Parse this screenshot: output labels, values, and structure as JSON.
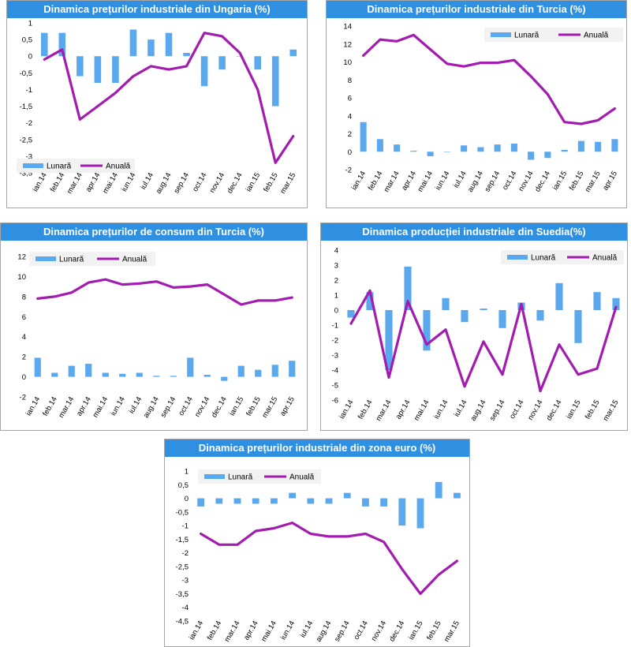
{
  "colors": {
    "bar": "#5aa8ee",
    "line": "#a21caf",
    "title_bg": "#2f8fe0"
  },
  "legend": {
    "monthly": "Lunară",
    "annual": "Anuală"
  },
  "chart_data": [
    {
      "type": "bar+line",
      "title": "Dinamica prețurilor industriale din Ungaria (%)",
      "categories": [
        "ian.14",
        "feb.14",
        "mar.14",
        "apr.14",
        "mai.14",
        "iun.14",
        "iul.14",
        "aug.14",
        "sep.14",
        "oct.14",
        "nov.14",
        "dec.14",
        "ian.15",
        "feb.15",
        "mar.15"
      ],
      "x_tick_labels": [
        "ian.14",
        "feb.14",
        "mar.14",
        "apr.14",
        "mai.14",
        "iun.14",
        "iul.14",
        "aug.14",
        "sep.14",
        "oct.14",
        "nov.14",
        "dec.14",
        "ian.15",
        "feb.15",
        "mar.15"
      ],
      "series": [
        {
          "name": "Lunară",
          "kind": "bar",
          "values": [
            0.7,
            0.7,
            -0.6,
            -0.8,
            -0.8,
            0.8,
            0.5,
            0.7,
            0.1,
            -0.9,
            -0.4,
            0.0,
            -0.4,
            -1.5,
            0.2
          ]
        },
        {
          "name": "Anuală",
          "kind": "line",
          "values": [
            -0.1,
            0.2,
            -1.9,
            -1.5,
            -1.1,
            -0.6,
            -0.3,
            -0.4,
            -0.3,
            0.7,
            0.6,
            0.1,
            -1.0,
            -3.2,
            -2.4
          ]
        }
      ],
      "ylim": [
        -3.5,
        1
      ],
      "y_ticks": [
        1,
        0.5,
        0,
        -0.5,
        -1,
        -1.5,
        -2,
        -2.5,
        -3,
        -3.5
      ],
      "y_tick_labels": [
        "1",
        "0,5",
        "0",
        "-0,5",
        "-1",
        "-1,5",
        "-2",
        "-2,5",
        "-3",
        "-3,5"
      ],
      "legend_position": "bottom-left"
    },
    {
      "type": "bar+line",
      "title": "Dinamica prețurilor industriale din Turcia (%)",
      "categories": [
        "ian.14",
        "feb.14",
        "mar.14",
        "apr.14",
        "mai.14",
        "iun.14",
        "iul.14",
        "aug.14",
        "sep.14",
        "oct.14",
        "nov.14",
        "dec.14",
        "ian.15",
        "feb.15",
        "mar.15",
        "apr.15"
      ],
      "x_tick_labels": [
        "ian.14",
        "feb.14",
        "mar.14",
        "apr.14",
        "mai.14",
        "iun.14",
        "iul.14",
        "aug.14",
        "sep.14",
        "oct.14",
        "nov.14",
        "dec.14",
        "ian.15",
        "feb.15",
        "mar.15",
        "apr.15"
      ],
      "series": [
        {
          "name": "Lunară",
          "kind": "bar",
          "values": [
            3.3,
            1.4,
            0.8,
            0.1,
            -0.5,
            0.0,
            0.7,
            0.5,
            0.8,
            0.9,
            -0.9,
            -0.7,
            0.2,
            1.2,
            1.1,
            1.4
          ]
        },
        {
          "name": "Anuală",
          "kind": "line",
          "values": [
            10.7,
            12.5,
            12.3,
            13.0,
            11.4,
            9.8,
            9.5,
            9.9,
            9.9,
            10.2,
            8.4,
            6.4,
            3.3,
            3.1,
            3.5,
            4.8
          ]
        }
      ],
      "ylim": [
        -2,
        14
      ],
      "y_ticks": [
        14,
        12,
        10,
        8,
        6,
        4,
        2,
        0,
        -2
      ],
      "y_tick_labels": [
        "14",
        "12",
        "10",
        "8",
        "6",
        "4",
        "2",
        "0",
        "-2"
      ],
      "legend_position": "top-right"
    },
    {
      "type": "bar+line",
      "title": "Dinamica prețurilor de consum din Turcia (%)",
      "categories": [
        "ian.14",
        "feb.14",
        "mar.14",
        "apr.14",
        "mai.14",
        "iun.14",
        "iul.14",
        "aug.14",
        "sep.14",
        "oct.14",
        "nov.14",
        "dec.14",
        "ian.15",
        "feb.15",
        "mar.15",
        "apr.15"
      ],
      "x_tick_labels": [
        "ian.14",
        "feb.14",
        "mar.14",
        "apr.14",
        "mai.14",
        "iun.14",
        "iul.14",
        "aug.14",
        "sep.14",
        "oct.14",
        "nov.14",
        "dec.14",
        "ian.15",
        "feb.15",
        "mar.15",
        "apr.15"
      ],
      "series": [
        {
          "name": "Lunară",
          "kind": "bar",
          "values": [
            1.9,
            0.4,
            1.1,
            1.3,
            0.4,
            0.3,
            0.4,
            0.1,
            0.1,
            1.9,
            0.2,
            -0.4,
            1.1,
            0.7,
            1.2,
            1.6
          ]
        },
        {
          "name": "Anuală",
          "kind": "line",
          "values": [
            7.8,
            8.0,
            8.4,
            9.4,
            9.7,
            9.2,
            9.3,
            9.5,
            8.9,
            9.0,
            9.2,
            8.2,
            7.2,
            7.6,
            7.6,
            7.9
          ]
        }
      ],
      "ylim": [
        -2,
        12
      ],
      "y_ticks": [
        12,
        10,
        8,
        6,
        4,
        2,
        0,
        -2
      ],
      "y_tick_labels": [
        "12",
        "10",
        "8",
        "6",
        "4",
        "2",
        "0",
        "-2"
      ],
      "legend_position": "top-left"
    },
    {
      "type": "bar+line",
      "title": "Dinamica producției industriale din Suedia(%)",
      "categories": [
        "ian.14",
        "feb.14",
        "mar.14",
        "apr.14",
        "mai.14",
        "iun.14",
        "iul.14",
        "aug.14",
        "sep.14",
        "oct.14",
        "nov.14",
        "dec.14",
        "ian.15",
        "feb.15",
        "mar.15"
      ],
      "x_tick_labels": [
        "ian.14",
        "feb.14",
        "mar.14",
        "apr.14",
        "mai.14",
        "iun.14",
        "iul.14",
        "aug.14",
        "sep.14",
        "oct.14",
        "nov.14",
        "dec.14",
        "ian.15",
        "feb.15",
        "mar.15"
      ],
      "series": [
        {
          "name": "Lunară",
          "kind": "bar",
          "values": [
            -0.5,
            1.2,
            -4.0,
            2.9,
            -2.7,
            0.8,
            -0.8,
            0.1,
            -1.2,
            0.5,
            -0.7,
            1.8,
            -2.2,
            1.2,
            0.8
          ]
        },
        {
          "name": "Anuală",
          "kind": "line",
          "values": [
            -0.9,
            1.3,
            -4.5,
            0.6,
            -2.3,
            -1.3,
            -5.1,
            -2.1,
            -4.3,
            0.4,
            -5.4,
            -2.3,
            -4.3,
            -3.9,
            0.2
          ]
        }
      ],
      "ylim": [
        -6,
        4
      ],
      "y_ticks": [
        4,
        3,
        2,
        1,
        0,
        -1,
        -2,
        -3,
        -4,
        -5,
        -6
      ],
      "y_tick_labels": [
        "4",
        "3",
        "2",
        "1",
        "0",
        "-1",
        "-2",
        "-3",
        "-4",
        "-5",
        "-6"
      ],
      "legend_position": "top-right"
    },
    {
      "type": "bar+line",
      "title": "Dinamica prețurilor industriale din zona euro (%)",
      "categories": [
        "ian.14",
        "feb.14",
        "mar.14",
        "apr.14",
        "mai.14",
        "iun.14",
        "iul.14",
        "aug.14",
        "sep.14",
        "oct.14",
        "nov.14",
        "dec.14",
        "ian.15",
        "feb.15",
        "mar.15"
      ],
      "x_tick_labels": [
        "ian.14",
        "feb.14",
        "mar.14",
        "apr.14",
        "mai.14",
        "iun.14",
        "iul.14",
        "aug.14",
        "sep.14",
        "oct.14",
        "nov.14",
        "dec.14",
        "ian.15",
        "feb.15",
        "mar.15"
      ],
      "series": [
        {
          "name": "Lunară",
          "kind": "bar",
          "values": [
            -0.3,
            -0.2,
            -0.2,
            -0.2,
            -0.2,
            0.2,
            -0.2,
            -0.2,
            0.2,
            -0.3,
            -0.3,
            -1.0,
            -1.1,
            0.6,
            0.2
          ]
        },
        {
          "name": "Anuală",
          "kind": "line",
          "values": [
            -1.3,
            -1.7,
            -1.7,
            -1.2,
            -1.1,
            -0.9,
            -1.3,
            -1.4,
            -1.4,
            -1.3,
            -1.6,
            -2.6,
            -3.5,
            -2.8,
            -2.3
          ]
        }
      ],
      "ylim": [
        -4.5,
        1
      ],
      "y_ticks": [
        1,
        0.5,
        0,
        -0.5,
        -1,
        -1.5,
        -2,
        -2.5,
        -3,
        -3.5,
        -4,
        -4.5
      ],
      "y_tick_labels": [
        "1",
        "0,5",
        "0",
        "-0,5",
        "-1",
        "-1,5",
        "-2",
        "-2,5",
        "-3",
        "-3,5",
        "-4",
        "-4,5"
      ],
      "legend_position": "top-left"
    }
  ]
}
